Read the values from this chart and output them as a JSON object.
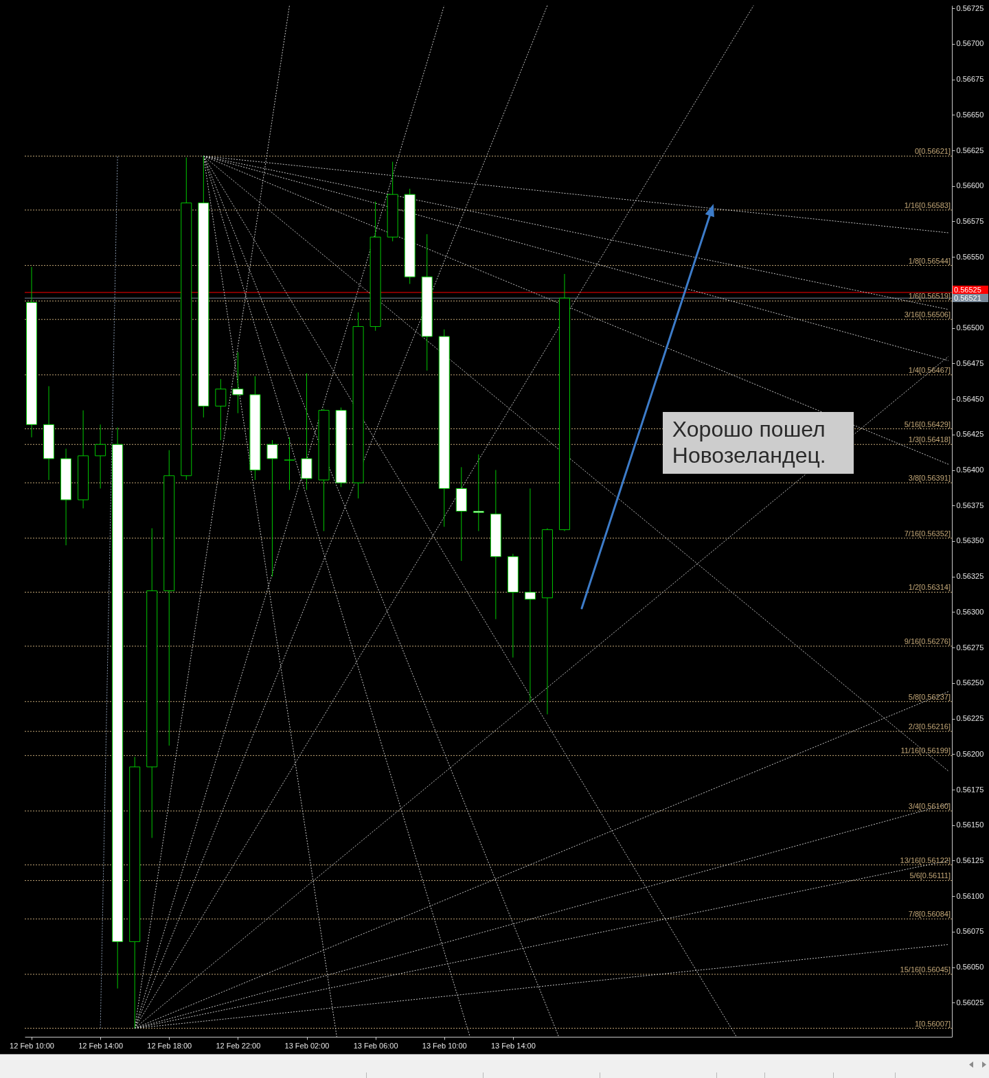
{
  "chart_data": {
    "type": "candlestick",
    "x": [
      "--02-12T10:00",
      "--02-12T11:00",
      "--02-12T12:00",
      "--02-12T13:00",
      "--02-12T14:00",
      "--02-12T15:00",
      "--02-12T16:00",
      "--02-12T17:00",
      "--02-12T18:00",
      "--02-12T19:00",
      "--02-12T20:00",
      "--02-12T21:00",
      "--02-12T22:00",
      "--02-12T23:00",
      "--02-13T00:00",
      "--02-13T01:00",
      "--02-13T02:00",
      "--02-13T03:00",
      "--02-13T04:00",
      "--02-13T05:00",
      "--02-13T06:00",
      "--02-13T07:00",
      "--02-13T08:00",
      "--02-13T09:00",
      "--02-13T10:00",
      "--02-13T11:00",
      "--02-13T12:00",
      "--02-13T13:00",
      "--02-13T14:00",
      "--02-13T15:00",
      "--02-13T16:00",
      "--02-13T17:00"
    ],
    "ohlc": [
      [
        0.56518,
        0.56543,
        0.56423,
        0.56432
      ],
      [
        0.56432,
        0.56459,
        0.56393,
        0.56408
      ],
      [
        0.56408,
        0.56415,
        0.56347,
        0.56379
      ],
      [
        0.56379,
        0.56442,
        0.56373,
        0.5641
      ],
      [
        0.5641,
        0.56432,
        0.56387,
        0.56418
      ],
      [
        0.56418,
        0.5643,
        0.56035,
        0.56068
      ],
      [
        0.56068,
        0.56198,
        0.56007,
        0.56191
      ],
      [
        0.56191,
        0.56359,
        0.56141,
        0.56315
      ],
      [
        0.56315,
        0.56414,
        0.56206,
        0.56396
      ],
      [
        0.56396,
        0.5662,
        0.56393,
        0.56588
      ],
      [
        0.56588,
        0.56621,
        0.56437,
        0.56445
      ],
      [
        0.56445,
        0.56464,
        0.56421,
        0.56457
      ],
      [
        0.56457,
        0.56483,
        0.5644,
        0.56453
      ],
      [
        0.56453,
        0.56466,
        0.56393,
        0.564
      ],
      [
        0.56418,
        0.56421,
        0.56325,
        0.56408
      ],
      [
        0.56407,
        0.56423,
        0.56386,
        0.56407
      ],
      [
        0.56408,
        0.56468,
        0.56386,
        0.56394
      ],
      [
        0.56393,
        0.56443,
        0.56357,
        0.56442
      ],
      [
        0.56442,
        0.56444,
        0.56388,
        0.56391
      ],
      [
        0.56391,
        0.56511,
        0.5638,
        0.56501
      ],
      [
        0.56501,
        0.56589,
        0.56498,
        0.56564
      ],
      [
        0.56564,
        0.56617,
        0.56561,
        0.56594
      ],
      [
        0.56594,
        0.56598,
        0.56531,
        0.56536
      ],
      [
        0.56536,
        0.56566,
        0.5647,
        0.56494
      ],
      [
        0.56494,
        0.56499,
        0.5636,
        0.56387
      ],
      [
        0.56387,
        0.56402,
        0.56336,
        0.56371
      ],
      [
        0.56371,
        0.56411,
        0.56357,
        0.5637
      ],
      [
        0.56369,
        0.564,
        0.56295,
        0.56339
      ],
      [
        0.56339,
        0.56341,
        0.56268,
        0.56314
      ],
      [
        0.56314,
        0.56387,
        0.56237,
        0.56309
      ],
      [
        0.5631,
        0.56359,
        0.56228,
        0.56358
      ],
      [
        0.56358,
        0.56538,
        0.56357,
        0.56521
      ]
    ],
    "color": "#00c800",
    "colors": [
      "#ffffff",
      "#ffffff",
      "#ffffff",
      "#000000",
      "#000000",
      "#ffffff",
      "#000000",
      "#000000",
      "#000000",
      "#000000",
      "#ffffff",
      "#000000",
      "#ffffff",
      "#ffffff",
      "#ffffff",
      "#00c800",
      "#ffffff",
      "#000000",
      "#ffffff",
      "#000000",
      "#000000",
      "#000000",
      "#ffffff",
      "#ffffff",
      "#ffffff",
      "#ffffff",
      "#ffffff",
      "#ffffff",
      "#ffffff",
      "#ffffff",
      "#000000",
      "#000000"
    ],
    "series": [
      {
        "type": "line",
        "color": "#c8c8c8",
        "x": [
          "--02-12T20:00",
          "--02-14T15:20"
        ],
        "values": [
          0.56621,
          0.56567
        ]
      },
      {
        "type": "line",
        "color": "#c8c8c8",
        "x": [
          "--02-12T20:00",
          "--02-14T15:20"
        ],
        "values": [
          0.56621,
          0.56513
        ]
      },
      {
        "type": "line",
        "color": "#c8c8c8",
        "x": [
          "--02-12T20:00",
          "--02-14T15:20"
        ],
        "values": [
          0.56621,
          0.56477
        ]
      },
      {
        "type": "line",
        "color": "#c8c8c8",
        "x": [
          "--02-12T20:00",
          "--02-14T15:20"
        ],
        "values": [
          0.56621,
          0.56404
        ]
      },
      {
        "type": "line",
        "color": "#c8c8c8",
        "x": [
          "--02-12T20:00",
          "--02-14T15:20"
        ],
        "values": [
          0.56621,
          0.56188
        ]
      },
      {
        "type": "line",
        "color": "#c8c8c8",
        "x": [
          "--02-12T20:00",
          "--02-14T03:00"
        ],
        "values": [
          0.56621,
          0.56001
        ]
      },
      {
        "type": "line",
        "color": "#c8c8c8",
        "x": [
          "--02-12T20:00",
          "--02-13T16:40"
        ],
        "values": [
          0.56621,
          0.56001
        ]
      },
      {
        "type": "line",
        "color": "#c8c8c8",
        "x": [
          "--02-12T20:00",
          "--02-13T11:30"
        ],
        "values": [
          0.56621,
          0.56001
        ]
      },
      {
        "type": "line",
        "color": "#c8c8c8",
        "x": [
          "--02-12T20:00",
          "--02-13T03:45"
        ],
        "values": [
          0.56621,
          0.56001
        ]
      },
      {
        "type": "line",
        "color": "#c8c8c8",
        "x": [
          "--02-12T16:00",
          "--02-14T15:20"
        ],
        "values": [
          0.56007,
          0.56066
        ]
      },
      {
        "type": "line",
        "color": "#c8c8c8",
        "x": [
          "--02-12T16:00",
          "--02-14T15:20"
        ],
        "values": [
          0.56007,
          0.56125
        ]
      },
      {
        "type": "line",
        "color": "#c8c8c8",
        "x": [
          "--02-12T16:00",
          "--02-14T15:20"
        ],
        "values": [
          0.56007,
          0.56165
        ]
      },
      {
        "type": "line",
        "color": "#c8c8c8",
        "x": [
          "--02-12T16:00",
          "--02-14T15:20"
        ],
        "values": [
          0.56007,
          0.56244
        ]
      },
      {
        "type": "line",
        "color": "#c8c8c8",
        "x": [
          "--02-12T16:00",
          "--02-14T15:20"
        ],
        "values": [
          0.56007,
          0.5648
        ]
      },
      {
        "type": "line",
        "color": "#c8c8c8",
        "x": [
          "--02-12T16:00",
          "--02-14T04:00"
        ],
        "values": [
          0.56007,
          0.56727
        ]
      },
      {
        "type": "line",
        "color": "#c8c8c8",
        "x": [
          "--02-12T16:00",
          "--02-13T16:00"
        ],
        "values": [
          0.56007,
          0.56727
        ]
      },
      {
        "type": "line",
        "color": "#c8c8c8",
        "x": [
          "--02-12T16:00",
          "--02-13T10:00"
        ],
        "values": [
          0.56007,
          0.56727
        ]
      },
      {
        "type": "line",
        "color": "#c8c8c8",
        "x": [
          "--02-12T16:00",
          "--02-13T01:00"
        ],
        "values": [
          0.56007,
          0.56727
        ]
      },
      {
        "type": "line",
        "color": "#8a9ab0",
        "x": [
          "--02-12T14:00",
          "--02-12T15:00"
        ],
        "values": [
          0.56007,
          0.56621
        ]
      }
    ],
    "line_style": "dotted",
    "xlim": [
      "--02-12T09:48",
      "--02-14T15:20"
    ],
    "xticks": [
      {
        "value": "--02-12T10:00",
        "label": "12 Feb 10:00"
      },
      {
        "value": "--02-12T14:00",
        "label": "12 Feb 14:00"
      },
      {
        "value": "--02-12T18:00",
        "label": "12 Feb 18:00"
      },
      {
        "value": "--02-12T22:00",
        "label": "12 Feb 22:00"
      },
      {
        "value": "--02-13T02:00",
        "label": "13 Feb 02:00"
      },
      {
        "value": "--02-13T06:00",
        "label": "13 Feb 06:00"
      },
      {
        "value": "--02-13T10:00",
        "label": "13 Feb 10:00"
      },
      {
        "value": "--02-13T14:00",
        "label": "13 Feb 14:00"
      }
    ],
    "ylim": [
      0.56001,
      0.56727
    ],
    "yticks": [
      0.56025,
      {
        "value": 0.5605,
        "label": "0.56050"
      },
      0.56075,
      {
        "value": 0.561,
        "label": "0.56100"
      },
      0.56125,
      {
        "value": 0.5615,
        "label": "0.56150"
      },
      0.56175,
      {
        "value": 0.562,
        "label": "0.56200"
      },
      0.56225,
      {
        "value": 0.5625,
        "label": "0.56250"
      },
      0.56275,
      {
        "value": 0.563,
        "label": "0.56300"
      },
      0.56325,
      {
        "value": 0.5635,
        "label": "0.56350"
      },
      0.56375,
      {
        "value": 0.564,
        "label": "0.56400"
      },
      0.56425,
      {
        "value": 0.5645,
        "label": "0.56450"
      },
      0.56475,
      {
        "value": 0.565,
        "label": "0.56500"
      },
      {
        "value": 0.5655,
        "label": "0.56550"
      },
      0.56575,
      {
        "value": 0.566,
        "label": "0.56600"
      },
      0.56625,
      {
        "value": 0.5665,
        "label": "0.56650"
      },
      0.56675,
      {
        "value": 0.567,
        "label": "0.56700"
      },
      0.56725
    ],
    "ref_lines": [
      {
        "axis": "y",
        "value": 0.56621,
        "label": "0[0.56621]",
        "color": "#c4a878",
        "line_style": "dotted"
      },
      {
        "axis": "y",
        "value": 0.56583,
        "label": "1/16[0.56583]",
        "color": "#c4a878",
        "line_style": "dotted"
      },
      {
        "axis": "y",
        "value": 0.56544,
        "label": "1/8[0.56544]",
        "color": "#c4a878",
        "line_style": "dotted"
      },
      {
        "axis": "y",
        "value": 0.56519,
        "label": "1/6[0.56519]",
        "color": "#c4a878",
        "line_style": "dotted"
      },
      {
        "axis": "y",
        "value": 0.56506,
        "label": "3/16[0.56506]",
        "color": "#c4a878",
        "line_style": "dotted"
      },
      {
        "axis": "y",
        "value": 0.56467,
        "label": "1/4[0.56467]",
        "color": "#c4a878",
        "line_style": "dotted"
      },
      {
        "axis": "y",
        "value": 0.56429,
        "label": "5/16[0.56429]",
        "color": "#c4a878",
        "line_style": "dotted"
      },
      {
        "axis": "y",
        "value": 0.56418,
        "label": "1/3[0.56418]",
        "color": "#c4a878",
        "line_style": "dotted"
      },
      {
        "axis": "y",
        "value": 0.56391,
        "label": "3/8[0.56391]",
        "color": "#c4a878",
        "line_style": "dotted"
      },
      {
        "axis": "y",
        "value": 0.56352,
        "label": "7/16[0.56352]",
        "color": "#c4a878",
        "line_style": "dotted"
      },
      {
        "axis": "y",
        "value": 0.56314,
        "label": "1/2[0.56314]",
        "color": "#c4a878",
        "line_style": "dotted"
      },
      {
        "axis": "y",
        "value": 0.56276,
        "label": "9/16[0.56276]",
        "color": "#c4a878",
        "line_style": "dotted"
      },
      {
        "axis": "y",
        "value": 0.56237,
        "label": "5/8[0.56237]",
        "color": "#c4a878",
        "line_style": "dotted"
      },
      {
        "axis": "y",
        "value": 0.56216,
        "label": "2/3[0.56216]",
        "color": "#c4a878",
        "line_style": "dotted"
      },
      {
        "axis": "y",
        "value": 0.56199,
        "label": "11/16[0.56199]",
        "color": "#c4a878",
        "line_style": "dotted"
      },
      {
        "axis": "y",
        "value": 0.5616,
        "label": "3/4[0.56160]",
        "color": "#c4a878",
        "line_style": "dotted"
      },
      {
        "axis": "y",
        "value": 0.56122,
        "label": "13/16[0.56122]",
        "color": "#c4a878",
        "line_style": "dotted"
      },
      {
        "axis": "y",
        "value": 0.56111,
        "label": "5/6[0.56111]",
        "color": "#c4a878",
        "line_style": "dotted"
      },
      {
        "axis": "y",
        "value": 0.56084,
        "label": "7/8[0.56084]",
        "color": "#c4a878",
        "line_style": "dotted"
      },
      {
        "axis": "y",
        "value": 0.56045,
        "label": "15/16[0.56045]",
        "color": "#c4a878",
        "line_style": "dotted"
      },
      {
        "axis": "y",
        "value": 0.56007,
        "label": "1[0.56007]",
        "color": "#c4a878",
        "line_style": "dotted"
      },
      {
        "axis": "y",
        "value": 0.56525,
        "label": "0.56525",
        "color": "#ff0000",
        "line_style": "solid"
      },
      {
        "axis": "y",
        "value": 0.56521,
        "label": "0.56521",
        "color": "#778899",
        "line_style": "solid"
      }
    ],
    "annotations": [
      "Хорошо пошел Новозеландец."
    ]
  }
}
